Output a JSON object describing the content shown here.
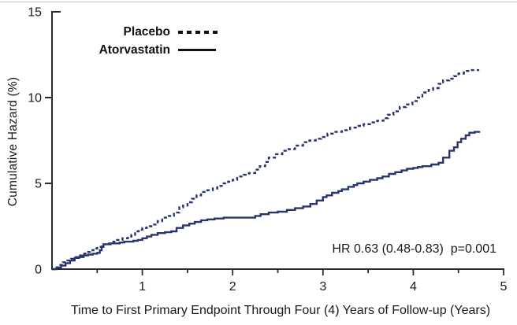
{
  "window": {
    "background": "#ffffff"
  },
  "chart_data": {
    "type": "line",
    "title": "",
    "xlabel": "Time to First Primary Endpoint Through Four (4) Years of Follow-up (Years)",
    "ylabel": "Cumulative Hazard (%)",
    "xlim": [
      0,
      5
    ],
    "ylim": [
      0,
      15
    ],
    "x_major_ticks": [
      1,
      2,
      3,
      4,
      5
    ],
    "x_minor_ticks": [
      0.5,
      1.5,
      2.5,
      3.5,
      4.5
    ],
    "y_ticks": [
      0,
      5,
      10,
      15
    ],
    "grid": false,
    "axis_color": "#2b2b2b",
    "text_color": "#1a1a1a",
    "curve_color": "#28356c",
    "legend": {
      "position": "inside-top-left",
      "sample_color": "#111111",
      "entries": [
        {
          "label": "Placebo",
          "line_style": "dashed"
        },
        {
          "label": "Atorvastatin",
          "line_style": "solid"
        }
      ]
    },
    "annotation": {
      "text": "HR 0.63 (0.48-0.83)  p=0.001",
      "x": 4.92,
      "y": 1.1
    },
    "series": [
      {
        "name": "Placebo",
        "style": "dashed",
        "step": true,
        "points": [
          [
            0,
            0
          ],
          [
            0.04,
            0.1
          ],
          [
            0.08,
            0.25
          ],
          [
            0.12,
            0.4
          ],
          [
            0.17,
            0.5
          ],
          [
            0.21,
            0.6
          ],
          [
            0.25,
            0.7
          ],
          [
            0.29,
            0.8
          ],
          [
            0.33,
            0.9
          ],
          [
            0.37,
            1.0
          ],
          [
            0.42,
            1.1
          ],
          [
            0.46,
            1.2
          ],
          [
            0.5,
            1.3
          ],
          [
            0.55,
            1.45
          ],
          [
            0.6,
            1.5
          ],
          [
            0.68,
            1.6
          ],
          [
            0.72,
            1.7
          ],
          [
            0.78,
            1.8
          ],
          [
            0.84,
            1.9
          ],
          [
            0.88,
            2.0
          ],
          [
            0.92,
            2.2
          ],
          [
            0.96,
            2.3
          ],
          [
            1.0,
            2.4
          ],
          [
            1.05,
            2.5
          ],
          [
            1.1,
            2.6
          ],
          [
            1.17,
            2.8
          ],
          [
            1.22,
            3.0
          ],
          [
            1.28,
            3.1
          ],
          [
            1.35,
            3.3
          ],
          [
            1.41,
            3.6
          ],
          [
            1.45,
            3.7
          ],
          [
            1.5,
            3.9
          ],
          [
            1.55,
            4.1
          ],
          [
            1.6,
            4.3
          ],
          [
            1.65,
            4.5
          ],
          [
            1.72,
            4.6
          ],
          [
            1.78,
            4.7
          ],
          [
            1.83,
            4.85
          ],
          [
            1.88,
            5.0
          ],
          [
            1.95,
            5.1
          ],
          [
            2.0,
            5.2
          ],
          [
            2.05,
            5.4
          ],
          [
            2.12,
            5.5
          ],
          [
            2.18,
            5.6
          ],
          [
            2.25,
            5.8
          ],
          [
            2.3,
            6.0
          ],
          [
            2.36,
            6.25
          ],
          [
            2.4,
            6.5
          ],
          [
            2.47,
            6.7
          ],
          [
            2.55,
            6.9
          ],
          [
            2.62,
            7.0
          ],
          [
            2.69,
            7.2
          ],
          [
            2.78,
            7.4
          ],
          [
            2.85,
            7.5
          ],
          [
            2.92,
            7.6
          ],
          [
            2.98,
            7.7
          ],
          [
            3.05,
            7.9
          ],
          [
            3.12,
            8.0
          ],
          [
            3.21,
            8.1
          ],
          [
            3.3,
            8.25
          ],
          [
            3.38,
            8.35
          ],
          [
            3.45,
            8.45
          ],
          [
            3.52,
            8.55
          ],
          [
            3.6,
            8.65
          ],
          [
            3.67,
            8.8
          ],
          [
            3.72,
            9.0
          ],
          [
            3.78,
            9.2
          ],
          [
            3.85,
            9.45
          ],
          [
            3.92,
            9.6
          ],
          [
            3.99,
            9.8
          ],
          [
            4.05,
            10.0
          ],
          [
            4.1,
            10.3
          ],
          [
            4.17,
            10.45
          ],
          [
            4.22,
            10.55
          ],
          [
            4.28,
            10.8
          ],
          [
            4.33,
            11.0
          ],
          [
            4.4,
            11.1
          ],
          [
            4.45,
            11.25
          ],
          [
            4.5,
            11.4
          ],
          [
            4.56,
            11.55
          ],
          [
            4.63,
            11.6
          ],
          [
            4.72,
            11.65
          ]
        ]
      },
      {
        "name": "Atorvastatin",
        "style": "solid",
        "step": true,
        "points": [
          [
            0,
            0
          ],
          [
            0.05,
            0.1
          ],
          [
            0.1,
            0.2
          ],
          [
            0.15,
            0.35
          ],
          [
            0.2,
            0.5
          ],
          [
            0.25,
            0.65
          ],
          [
            0.3,
            0.7
          ],
          [
            0.35,
            0.8
          ],
          [
            0.4,
            0.85
          ],
          [
            0.45,
            0.9
          ],
          [
            0.5,
            0.95
          ],
          [
            0.53,
            1.1
          ],
          [
            0.55,
            1.3
          ],
          [
            0.57,
            1.45
          ],
          [
            0.65,
            1.5
          ],
          [
            0.75,
            1.55
          ],
          [
            0.8,
            1.6
          ],
          [
            0.9,
            1.65
          ],
          [
            0.95,
            1.7
          ],
          [
            1.0,
            1.8
          ],
          [
            1.05,
            1.9
          ],
          [
            1.1,
            2.0
          ],
          [
            1.17,
            2.1
          ],
          [
            1.25,
            2.15
          ],
          [
            1.32,
            2.2
          ],
          [
            1.38,
            2.4
          ],
          [
            1.45,
            2.55
          ],
          [
            1.52,
            2.65
          ],
          [
            1.58,
            2.75
          ],
          [
            1.65,
            2.85
          ],
          [
            1.72,
            2.9
          ],
          [
            1.8,
            2.95
          ],
          [
            1.9,
            3.0
          ],
          [
            2.1,
            3.0
          ],
          [
            2.25,
            3.1
          ],
          [
            2.31,
            3.2
          ],
          [
            2.4,
            3.3
          ],
          [
            2.5,
            3.35
          ],
          [
            2.6,
            3.45
          ],
          [
            2.69,
            3.55
          ],
          [
            2.78,
            3.65
          ],
          [
            2.86,
            3.8
          ],
          [
            2.93,
            4.0
          ],
          [
            3.0,
            4.2
          ],
          [
            3.04,
            4.3
          ],
          [
            3.1,
            4.45
          ],
          [
            3.17,
            4.55
          ],
          [
            3.21,
            4.65
          ],
          [
            3.28,
            4.8
          ],
          [
            3.34,
            4.9
          ],
          [
            3.38,
            5.0
          ],
          [
            3.45,
            5.1
          ],
          [
            3.52,
            5.2
          ],
          [
            3.6,
            5.3
          ],
          [
            3.66,
            5.4
          ],
          [
            3.73,
            5.55
          ],
          [
            3.8,
            5.65
          ],
          [
            3.87,
            5.75
          ],
          [
            3.93,
            5.85
          ],
          [
            4.0,
            5.9
          ],
          [
            4.05,
            5.95
          ],
          [
            4.1,
            6.0
          ],
          [
            4.2,
            6.1
          ],
          [
            4.28,
            6.2
          ],
          [
            4.33,
            6.5
          ],
          [
            4.4,
            6.9
          ],
          [
            4.45,
            7.1
          ],
          [
            4.49,
            7.4
          ],
          [
            4.53,
            7.6
          ],
          [
            4.58,
            7.8
          ],
          [
            4.62,
            7.95
          ],
          [
            4.68,
            8.0
          ],
          [
            4.73,
            8.05
          ]
        ]
      }
    ]
  }
}
